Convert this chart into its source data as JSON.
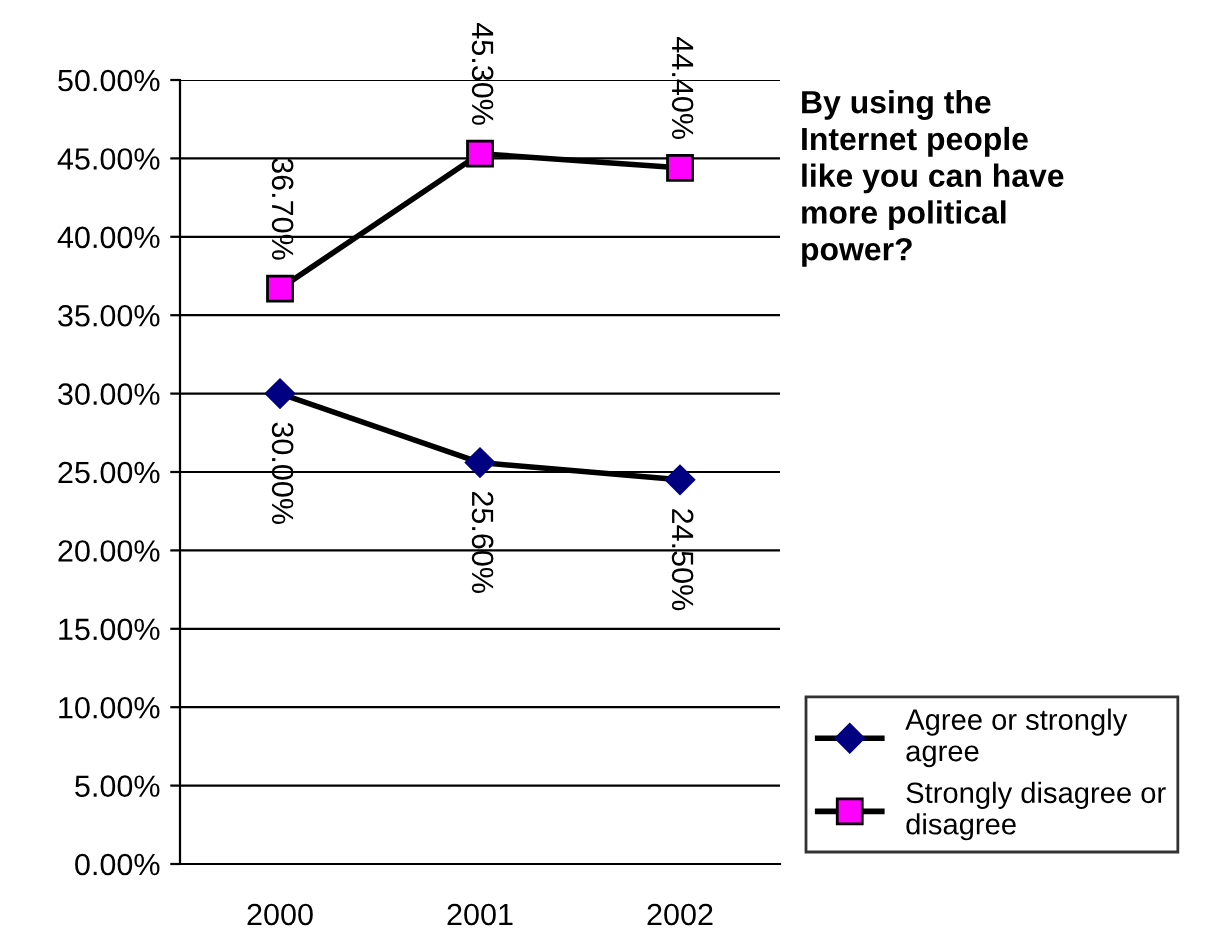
{
  "chart_data": {
    "type": "line",
    "title": "By using the Internet people like you can have more political power?",
    "categories": [
      "2000",
      "2001",
      "2002"
    ],
    "series": [
      {
        "name": "Agree or strongly agree",
        "color": "#000080",
        "marker": "diamond",
        "values": [
          30.0,
          25.6,
          24.5
        ],
        "value_labels": [
          "30.00%",
          "25.60%",
          "24.50%"
        ]
      },
      {
        "name": "Strongly disagree or disagree",
        "color": "#ff00ff",
        "marker": "square",
        "values": [
          36.7,
          45.3,
          44.4
        ],
        "value_labels": [
          "36.70%",
          "45.30%",
          "44.40%"
        ]
      }
    ],
    "ylim": [
      0,
      50
    ],
    "yticks": [
      {
        "value": 0,
        "label": "0.00%"
      },
      {
        "value": 5,
        "label": "5.00%"
      },
      {
        "value": 10,
        "label": "10.00%"
      },
      {
        "value": 15,
        "label": "15.00%"
      },
      {
        "value": 20,
        "label": "20.00%"
      },
      {
        "value": 25,
        "label": "25.00%"
      },
      {
        "value": 30,
        "label": "30.00%"
      },
      {
        "value": 35,
        "label": "35.00%"
      },
      {
        "value": 40,
        "label": "40.00%"
      },
      {
        "value": 45,
        "label": "45.00%"
      },
      {
        "value": 50,
        "label": "50.00%"
      }
    ],
    "grid": "y",
    "legend": "bottom right",
    "line_style": "solid"
  }
}
